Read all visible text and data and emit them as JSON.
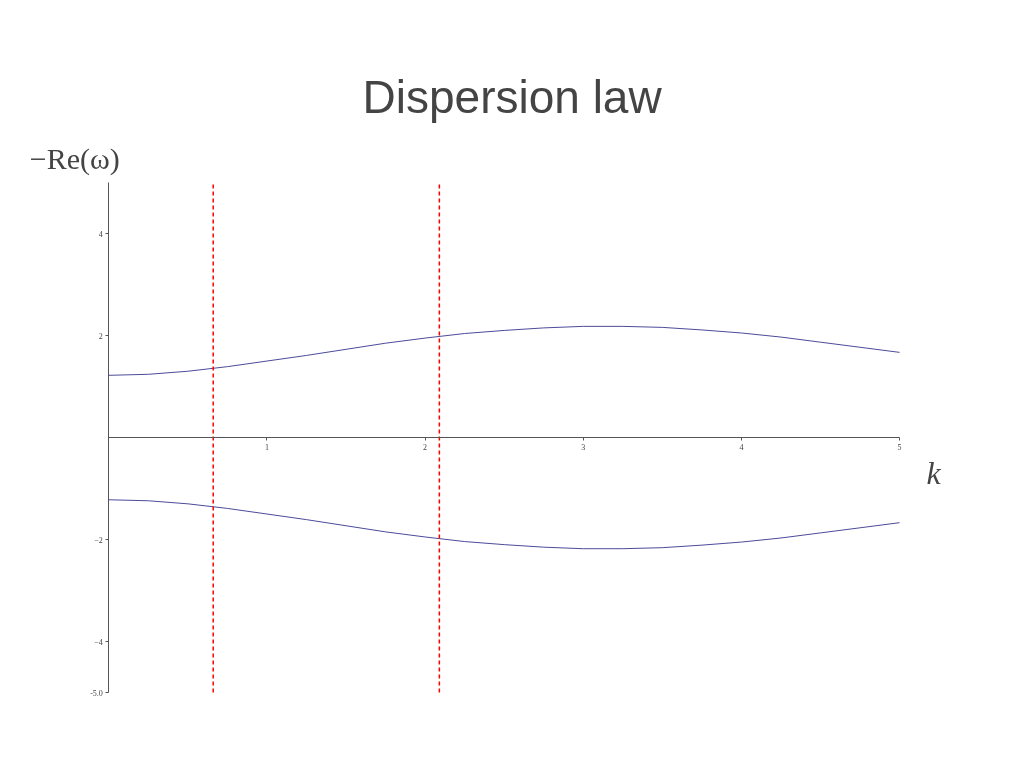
{
  "chart_data": {
    "type": "line",
    "title": "Dispersion law",
    "xlabel": "k",
    "ylabel": "−Re(ω)",
    "x": [
      0,
      0.25,
      0.5,
      0.75,
      1.0,
      1.25,
      1.5,
      1.75,
      2.0,
      2.25,
      2.5,
      2.75,
      3.0,
      3.25,
      3.5,
      3.75,
      4.0,
      4.25,
      4.5,
      4.75,
      5.0
    ],
    "series": [
      {
        "color": "#4b4b9b",
        "values": [
          1.22,
          1.24,
          1.3,
          1.39,
          1.5,
          1.61,
          1.73,
          1.85,
          1.95,
          2.04,
          2.1,
          2.15,
          2.18,
          2.18,
          2.16,
          2.11,
          2.05,
          1.97,
          1.87,
          1.77,
          1.67
        ]
      },
      {
        "color": "#4b4b9b",
        "values": [
          -1.22,
          -1.24,
          -1.3,
          -1.39,
          -1.5,
          -1.61,
          -1.73,
          -1.85,
          -1.95,
          -2.04,
          -2.1,
          -2.15,
          -2.18,
          -2.18,
          -2.16,
          -2.11,
          -2.05,
          -1.97,
          -1.87,
          -1.77,
          -1.67
        ]
      }
    ],
    "xlim": [
      0,
      5
    ],
    "ylim": [
      -5,
      5
    ],
    "xticks": [
      1,
      2,
      3,
      4,
      5
    ],
    "yticks": [
      {
        "value": -5,
        "label": "-5.0"
      },
      -4,
      -2,
      2,
      4
    ],
    "ref_lines": [
      {
        "axis": "x",
        "value": 0.66,
        "color": "#ff0000",
        "line_style": "dashed"
      },
      {
        "axis": "x",
        "value": 2.09,
        "color": "#ff0000",
        "line_style": "dashed"
      }
    ],
    "grid": false
  }
}
